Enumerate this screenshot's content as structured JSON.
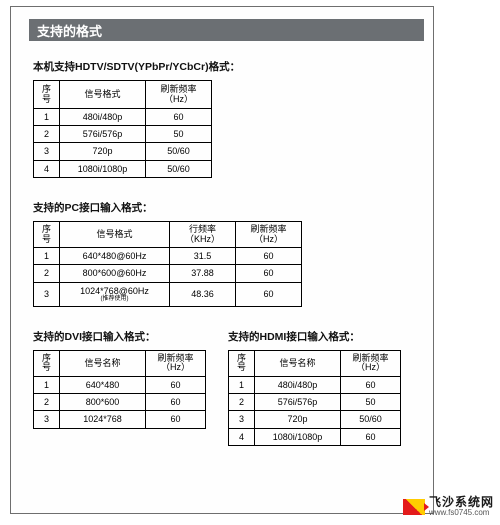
{
  "header": {
    "title": "支持的格式"
  },
  "section1": {
    "title": "本机支持HDTV/SDTV(YPbPr/YCbCr)格式：",
    "cols": [
      "序号",
      "信号格式",
      "刷新频率（Hz）"
    ],
    "rows": [
      [
        "1",
        "480i/480p",
        "60"
      ],
      [
        "2",
        "576i/576p",
        "50"
      ],
      [
        "3",
        "720p",
        "50/60"
      ],
      [
        "4",
        "1080i/1080p",
        "50/60"
      ]
    ]
  },
  "section2": {
    "title": "支持的PC接口输入格式：",
    "cols": [
      "序号",
      "信号格式",
      "行频率\n（KHz）",
      "刷新频率\n（Hz）"
    ],
    "rows": [
      [
        "1",
        "640*480@60Hz",
        "31.5",
        "60"
      ],
      [
        "2",
        "800*600@60Hz",
        "37.88",
        "60"
      ],
      [
        "3",
        "1024*768@60Hz\n(推荐使用)",
        "48.36",
        "60"
      ]
    ]
  },
  "section3": {
    "title": "支持的DVI接口输入格式：",
    "cols": [
      "序号",
      "信号名称",
      "刷新频率\n（Hz）"
    ],
    "rows": [
      [
        "1",
        "640*480",
        "60"
      ],
      [
        "2",
        "800*600",
        "60"
      ],
      [
        "3",
        "1024*768",
        "60"
      ]
    ]
  },
  "section4": {
    "title": "支持的HDMI接口输入格式：",
    "cols": [
      "序号",
      "信号名称",
      "刷新频率\n（Hz）"
    ],
    "rows": [
      [
        "1",
        "480i/480p",
        "60"
      ],
      [
        "2",
        "576i/576p",
        "50"
      ],
      [
        "3",
        "720p",
        "50/60"
      ],
      [
        "4",
        "1080i/1080p",
        "60"
      ]
    ]
  },
  "watermark": {
    "main": "飞沙系统网",
    "sub": "www.fs0745.com"
  },
  "style": {
    "header_bg": "#6b6f73",
    "header_text_color": "#ffffff",
    "border_color": "#000000",
    "page_border": "#6e6e6e",
    "font_title": 13,
    "font_section": 10.5,
    "font_cell": 9
  }
}
